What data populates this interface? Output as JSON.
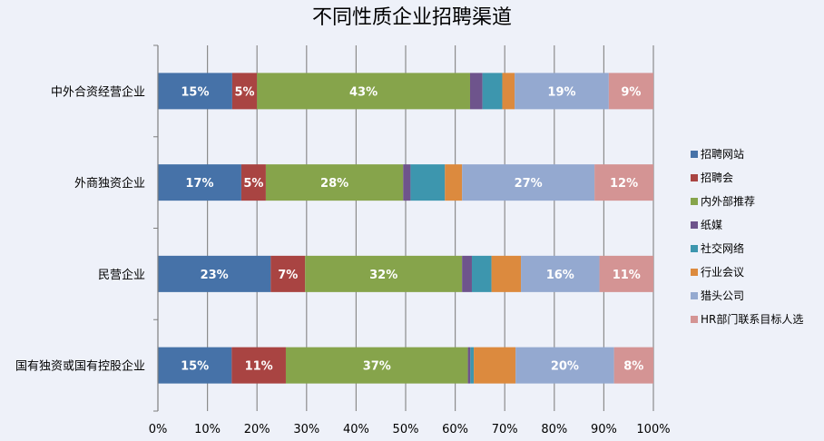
{
  "chart_data": {
    "type": "bar",
    "orientation": "horizontal",
    "stacking": "percent",
    "title": "不同性质企业招聘渠道",
    "categories": [
      "中外合资经营企业",
      "外商独资企业",
      "民营企业",
      "国有独资或国有控股企业"
    ],
    "series": [
      {
        "name": "招聘网站",
        "color": "#4672a8",
        "values": [
          15,
          17,
          23,
          15
        ],
        "labels": [
          "15%",
          "17%",
          "23%",
          "15%"
        ]
      },
      {
        "name": "招聘会",
        "color": "#a94442",
        "values": [
          5,
          5,
          7,
          11
        ],
        "labels": [
          "5%",
          "5%",
          "7%",
          "11%"
        ]
      },
      {
        "name": "内外部推荐",
        "color": "#86a44b",
        "values": [
          43,
          28,
          32,
          37
        ],
        "labels": [
          "43%",
          "28%",
          "32%",
          "37%"
        ]
      },
      {
        "name": "纸媒",
        "color": "#6e548c",
        "values": [
          2.5,
          1.5,
          2,
          0.5
        ],
        "labels": [
          "",
          "",
          "",
          ""
        ]
      },
      {
        "name": "社交网络",
        "color": "#3d96ae",
        "values": [
          4,
          7,
          4,
          0.7
        ],
        "labels": [
          "",
          "",
          "",
          ""
        ]
      },
      {
        "name": "行业会议",
        "color": "#dc8a3e",
        "values": [
          2.5,
          3.5,
          6,
          8.5
        ],
        "labels": [
          "",
          "",
          "",
          ""
        ]
      },
      {
        "name": "猎头公司",
        "color": "#94a9d0",
        "values": [
          19,
          27,
          16,
          20
        ],
        "labels": [
          "19%",
          "27%",
          "16%",
          "20%"
        ]
      },
      {
        "name": "HR部门联系目标人选",
        "color": "#d49494",
        "values": [
          9,
          12,
          11,
          8
        ],
        "labels": [
          "9%",
          "12%",
          "11%",
          "8%"
        ]
      }
    ],
    "xlim": [
      0,
      100
    ],
    "xticks": [
      "0%",
      "10%",
      "20%",
      "30%",
      "40%",
      "50%",
      "60%",
      "70%",
      "80%",
      "90%",
      "100%"
    ],
    "grid": true,
    "legend_position": "right"
  }
}
